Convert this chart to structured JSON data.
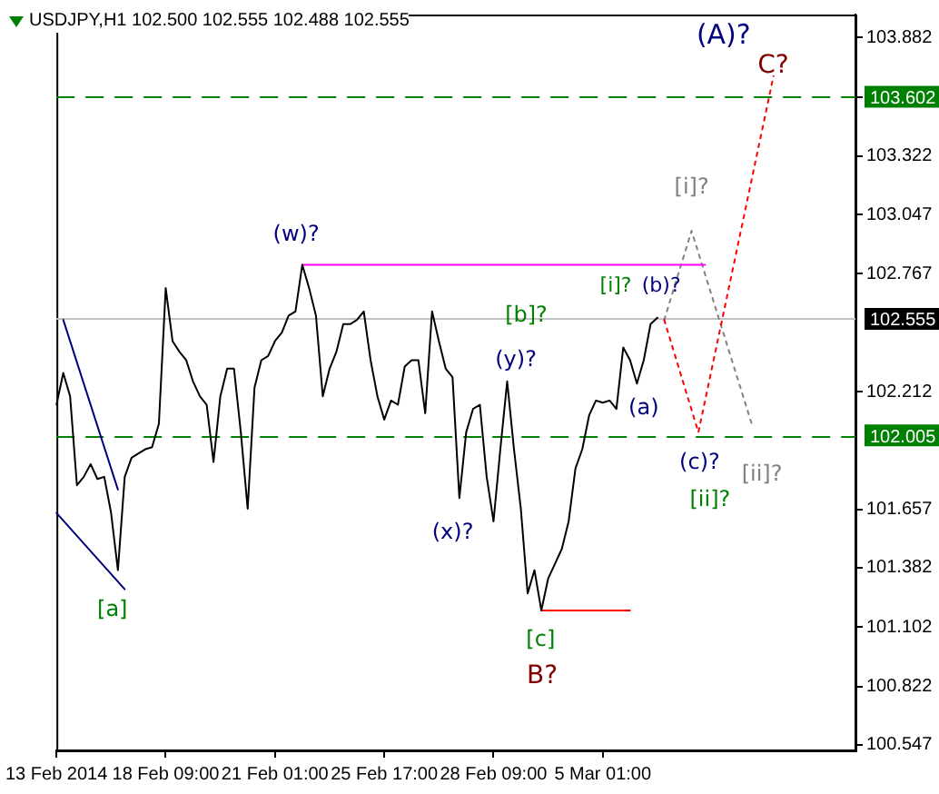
{
  "chart_data": {
    "type": "line",
    "title": "USDJPY,H1  102.500 102.555 102.488 102.555",
    "categories": [
      "13 Feb 2014",
      null,
      null,
      null,
      null,
      null,
      null,
      null,
      null,
      null,
      null,
      null,
      null,
      null,
      null,
      null,
      "18 Feb 09:00",
      null,
      null,
      null,
      null,
      null,
      null,
      null,
      null,
      null,
      null,
      null,
      null,
      null,
      null,
      null,
      "21 Feb 01:00",
      null,
      null,
      null,
      null,
      null,
      null,
      null,
      null,
      null,
      null,
      null,
      null,
      null,
      null,
      null,
      "25 Feb 17:00",
      null,
      null,
      null,
      null,
      null,
      null,
      null,
      null,
      null,
      null,
      null,
      null,
      null,
      null,
      null,
      "28 Feb 09:00",
      null,
      null,
      null,
      null,
      null,
      null,
      null,
      null,
      null,
      null,
      null,
      null,
      null,
      null,
      null,
      "5 Mar 01:00",
      null,
      null,
      null,
      null,
      null,
      null,
      null,
      null,
      null,
      null,
      null,
      null,
      null,
      null,
      null,
      null,
      null,
      null,
      null,
      null,
      null,
      null,
      null,
      null,
      null,
      null,
      null,
      null,
      null,
      null,
      null,
      null,
      null,
      null,
      null,
      null,
      null
    ],
    "ylim": [
      100.52,
      103.99
    ],
    "yticks": [
      100.547,
      100.822,
      101.102,
      101.382,
      101.657,
      102.212,
      102.767,
      103.047,
      103.322,
      {
        "value": 103.602,
        "label": null
      },
      103.882
    ],
    "grid": false,
    "legend": false,
    "marker": "none",
    "series": [
      {
        "color": "#000000",
        "line_style": "solid",
        "values": [
          102.15,
          102.3,
          102.19,
          101.77,
          101.81,
          101.87,
          101.8,
          101.81,
          101.64,
          101.37,
          101.81,
          101.9,
          101.92,
          101.94,
          101.95,
          102.06,
          102.7,
          102.45,
          102.4,
          102.36,
          102.26,
          102.19,
          102.15,
          101.88,
          102.19,
          102.32,
          102.32,
          102.02,
          101.66,
          102.23,
          102.36,
          102.38,
          102.45,
          102.49,
          102.57,
          102.59,
          102.81,
          102.7,
          102.57,
          102.19,
          102.32,
          102.4,
          102.53,
          102.53,
          102.55,
          102.59,
          102.36,
          102.19,
          102.08,
          102.17,
          102.15,
          102.33,
          102.36,
          102.36,
          102.11,
          102.59,
          102.45,
          102.32,
          102.28,
          101.71,
          102.02,
          102.13,
          102.15,
          101.81,
          101.6,
          101.94,
          102.26,
          101.94,
          101.66,
          101.26,
          101.37,
          101.18,
          101.33,
          101.4,
          101.47,
          101.6,
          101.85,
          101.94,
          102.1,
          102.17,
          102.16,
          102.17,
          102.13,
          102.42,
          102.36,
          102.25,
          102.36,
          102.53,
          102.56,
          null,
          null,
          null,
          null,
          null,
          null,
          null,
          null,
          null,
          null,
          null,
          null,
          null,
          null,
          null,
          null,
          null,
          null,
          null,
          null,
          null,
          null,
          null,
          null,
          null,
          null,
          null,
          null,
          null
        ]
      },
      {
        "color": "#000080",
        "line_style": "solid",
        "values": [
          null,
          102.55,
          null,
          null,
          null,
          null,
          null,
          null,
          null,
          101.75,
          null,
          null,
          null,
          null,
          null,
          null,
          null,
          null,
          null,
          null,
          null,
          null,
          null,
          null,
          null,
          null,
          null,
          null,
          null,
          null,
          null,
          null,
          null,
          null,
          null,
          null,
          null,
          null,
          null,
          null,
          null,
          null,
          null,
          null,
          null,
          null,
          null,
          null,
          null,
          null,
          null,
          null,
          null,
          null,
          null,
          null,
          null,
          null,
          null,
          null,
          null,
          null,
          null,
          null,
          null,
          null,
          null,
          null,
          null,
          null,
          null,
          null,
          null,
          null,
          null,
          null,
          null,
          null,
          null,
          null,
          null,
          null,
          null,
          null,
          null,
          null,
          null,
          null,
          null,
          null,
          null,
          null,
          null,
          null,
          null,
          null,
          null,
          null,
          null,
          null,
          null,
          null,
          null,
          null,
          null,
          null,
          null,
          null,
          null,
          null,
          null,
          null,
          null,
          null,
          null,
          null,
          null,
          null
        ]
      },
      {
        "color": "#000080",
        "line_style": "solid",
        "values": [
          101.64,
          null,
          null,
          null,
          null,
          null,
          null,
          null,
          null,
          null,
          101.28,
          null,
          null,
          null,
          null,
          null,
          null,
          null,
          null,
          null,
          null,
          null,
          null,
          null,
          null,
          null,
          null,
          null,
          null,
          null,
          null,
          null,
          null,
          null,
          null,
          null,
          null,
          null,
          null,
          null,
          null,
          null,
          null,
          null,
          null,
          null,
          null,
          null,
          null,
          null,
          null,
          null,
          null,
          null,
          null,
          null,
          null,
          null,
          null,
          null,
          null,
          null,
          null,
          null,
          null,
          null,
          null,
          null,
          null,
          null,
          null,
          null,
          null,
          null,
          null,
          null,
          null,
          null,
          null,
          null,
          null,
          null,
          null,
          null,
          null,
          null,
          null,
          null,
          null,
          null,
          null,
          null,
          null,
          null,
          null,
          null,
          null,
          null,
          null,
          null,
          null,
          null,
          null,
          null,
          null,
          null,
          null,
          null,
          null,
          null,
          null,
          null,
          null,
          null,
          null,
          null,
          null,
          null
        ]
      },
      {
        "color": "#ff00ff",
        "line_style": "solid",
        "values": [
          null,
          null,
          null,
          null,
          null,
          null,
          null,
          null,
          null,
          null,
          null,
          null,
          null,
          null,
          null,
          null,
          null,
          null,
          null,
          null,
          null,
          null,
          null,
          null,
          null,
          null,
          null,
          null,
          null,
          null,
          null,
          null,
          null,
          null,
          null,
          null,
          102.81,
          null,
          null,
          null,
          null,
          null,
          null,
          null,
          null,
          null,
          null,
          null,
          null,
          null,
          null,
          null,
          null,
          null,
          null,
          null,
          null,
          null,
          null,
          null,
          null,
          null,
          null,
          null,
          null,
          null,
          null,
          null,
          null,
          null,
          null,
          null,
          null,
          null,
          null,
          null,
          null,
          null,
          null,
          null,
          null,
          null,
          null,
          null,
          null,
          null,
          null,
          null,
          null,
          null,
          null,
          null,
          null,
          null,
          null,
          102.81,
          null,
          null,
          null,
          null,
          null,
          null,
          null,
          null,
          null,
          null,
          null,
          null,
          null,
          null,
          null,
          null,
          null,
          null,
          null,
          null,
          null,
          null
        ]
      },
      {
        "color": "#ff0000",
        "line_style": "solid",
        "values": [
          null,
          null,
          null,
          null,
          null,
          null,
          null,
          null,
          null,
          null,
          null,
          null,
          null,
          null,
          null,
          null,
          null,
          null,
          null,
          null,
          null,
          null,
          null,
          null,
          null,
          null,
          null,
          null,
          null,
          null,
          null,
          null,
          null,
          null,
          null,
          null,
          null,
          null,
          null,
          null,
          null,
          null,
          null,
          null,
          null,
          null,
          null,
          null,
          null,
          null,
          null,
          null,
          null,
          null,
          null,
          null,
          null,
          null,
          null,
          null,
          null,
          null,
          null,
          null,
          null,
          null,
          null,
          null,
          null,
          null,
          null,
          101.18,
          null,
          null,
          null,
          null,
          null,
          null,
          null,
          null,
          null,
          null,
          null,
          null,
          101.18,
          null,
          null,
          null,
          null,
          null,
          null,
          null,
          null,
          null,
          null,
          null,
          null,
          null,
          null,
          null,
          null,
          null,
          null,
          null,
          null,
          null,
          null,
          null,
          null,
          null,
          null,
          null,
          null,
          null,
          null,
          null,
          null,
          null
        ]
      },
      {
        "color": "#ff0000",
        "line_style": "dotted",
        "values": [
          null,
          null,
          null,
          null,
          null,
          null,
          null,
          null,
          null,
          null,
          null,
          null,
          null,
          null,
          null,
          null,
          null,
          null,
          null,
          null,
          null,
          null,
          null,
          null,
          null,
          null,
          null,
          null,
          null,
          null,
          null,
          null,
          null,
          null,
          null,
          null,
          null,
          null,
          null,
          null,
          null,
          null,
          null,
          null,
          null,
          null,
          null,
          null,
          null,
          null,
          null,
          null,
          null,
          null,
          null,
          null,
          null,
          null,
          null,
          null,
          null,
          null,
          null,
          null,
          null,
          null,
          null,
          null,
          null,
          null,
          null,
          null,
          null,
          null,
          null,
          null,
          null,
          null,
          null,
          null,
          null,
          null,
          null,
          null,
          null,
          null,
          null,
          null,
          null,
          102.55,
          null,
          null,
          null,
          null,
          102.02,
          null,
          null,
          null,
          null,
          null,
          null,
          null,
          null,
          null,
          null,
          103.7,
          null,
          null,
          null,
          null,
          null,
          null,
          null,
          null,
          null,
          null,
          null,
          null
        ]
      },
      {
        "color": "#808080",
        "line_style": "dotted",
        "values": [
          null,
          null,
          null,
          null,
          null,
          null,
          null,
          null,
          null,
          null,
          null,
          null,
          null,
          null,
          null,
          null,
          null,
          null,
          null,
          null,
          null,
          null,
          null,
          null,
          null,
          null,
          null,
          null,
          null,
          null,
          null,
          null,
          null,
          null,
          null,
          null,
          null,
          null,
          null,
          null,
          null,
          null,
          null,
          null,
          null,
          null,
          null,
          null,
          null,
          null,
          null,
          null,
          null,
          null,
          null,
          null,
          null,
          null,
          null,
          null,
          null,
          null,
          null,
          null,
          null,
          null,
          null,
          null,
          null,
          null,
          null,
          null,
          null,
          null,
          null,
          null,
          null,
          null,
          null,
          null,
          null,
          null,
          null,
          null,
          null,
          null,
          null,
          null,
          null,
          102.55,
          null,
          null,
          null,
          102.97,
          null,
          null,
          null,
          null,
          null,
          null,
          null,
          null,
          102.04,
          null,
          null,
          null,
          null,
          null,
          null,
          null,
          null,
          null,
          null,
          null,
          null,
          null,
          null,
          null
        ]
      }
    ],
    "ref_lines": [
      {
        "axis": "y",
        "value": 103.602,
        "label": "103.602",
        "color": "#008000",
        "line_style": "dashed"
      },
      {
        "axis": "y",
        "value": 102.005,
        "label": "102.005",
        "color": "#008000",
        "line_style": "dashed"
      },
      {
        "axis": "y",
        "value": 102.555,
        "label": "102.555",
        "color": "#c0c0c0",
        "line_style": "solid"
      }
    ],
    "annotations": [
      "(A)?",
      "C?",
      "[i]?",
      "[i]?",
      "(b)?",
      "(w)?",
      "[b]?",
      "(y)?",
      "(a)",
      "(c)?",
      "[ii]?",
      "[ii]?",
      "(x)?",
      "[a]",
      "[c]",
      "B?"
    ]
  }
}
